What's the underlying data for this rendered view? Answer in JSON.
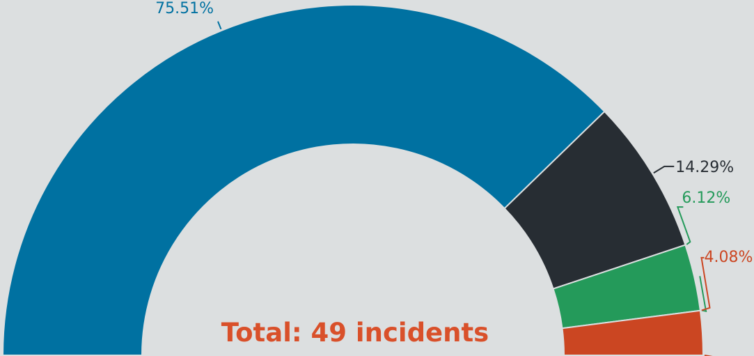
{
  "chart_data": {
    "type": "pie",
    "variant": "semi-donut",
    "title": "",
    "center_label": "Total: 49 incidents",
    "slices": [
      {
        "label": "75.51%",
        "percent": 75.51,
        "count": 37,
        "color": "#0071a1",
        "label_color": "#0071a1"
      },
      {
        "label": "14.29%",
        "percent": 14.29,
        "count": 7,
        "color": "#272d33",
        "label_color": "#272d33"
      },
      {
        "label": "6.12%",
        "percent": 6.12,
        "count": 3,
        "color": "#249a5a",
        "label_color": "#249a5a"
      },
      {
        "label": "4.08%",
        "percent": 4.08,
        "count": 2,
        "color": "#cb4622",
        "label_color": "#cb4622"
      }
    ]
  }
}
